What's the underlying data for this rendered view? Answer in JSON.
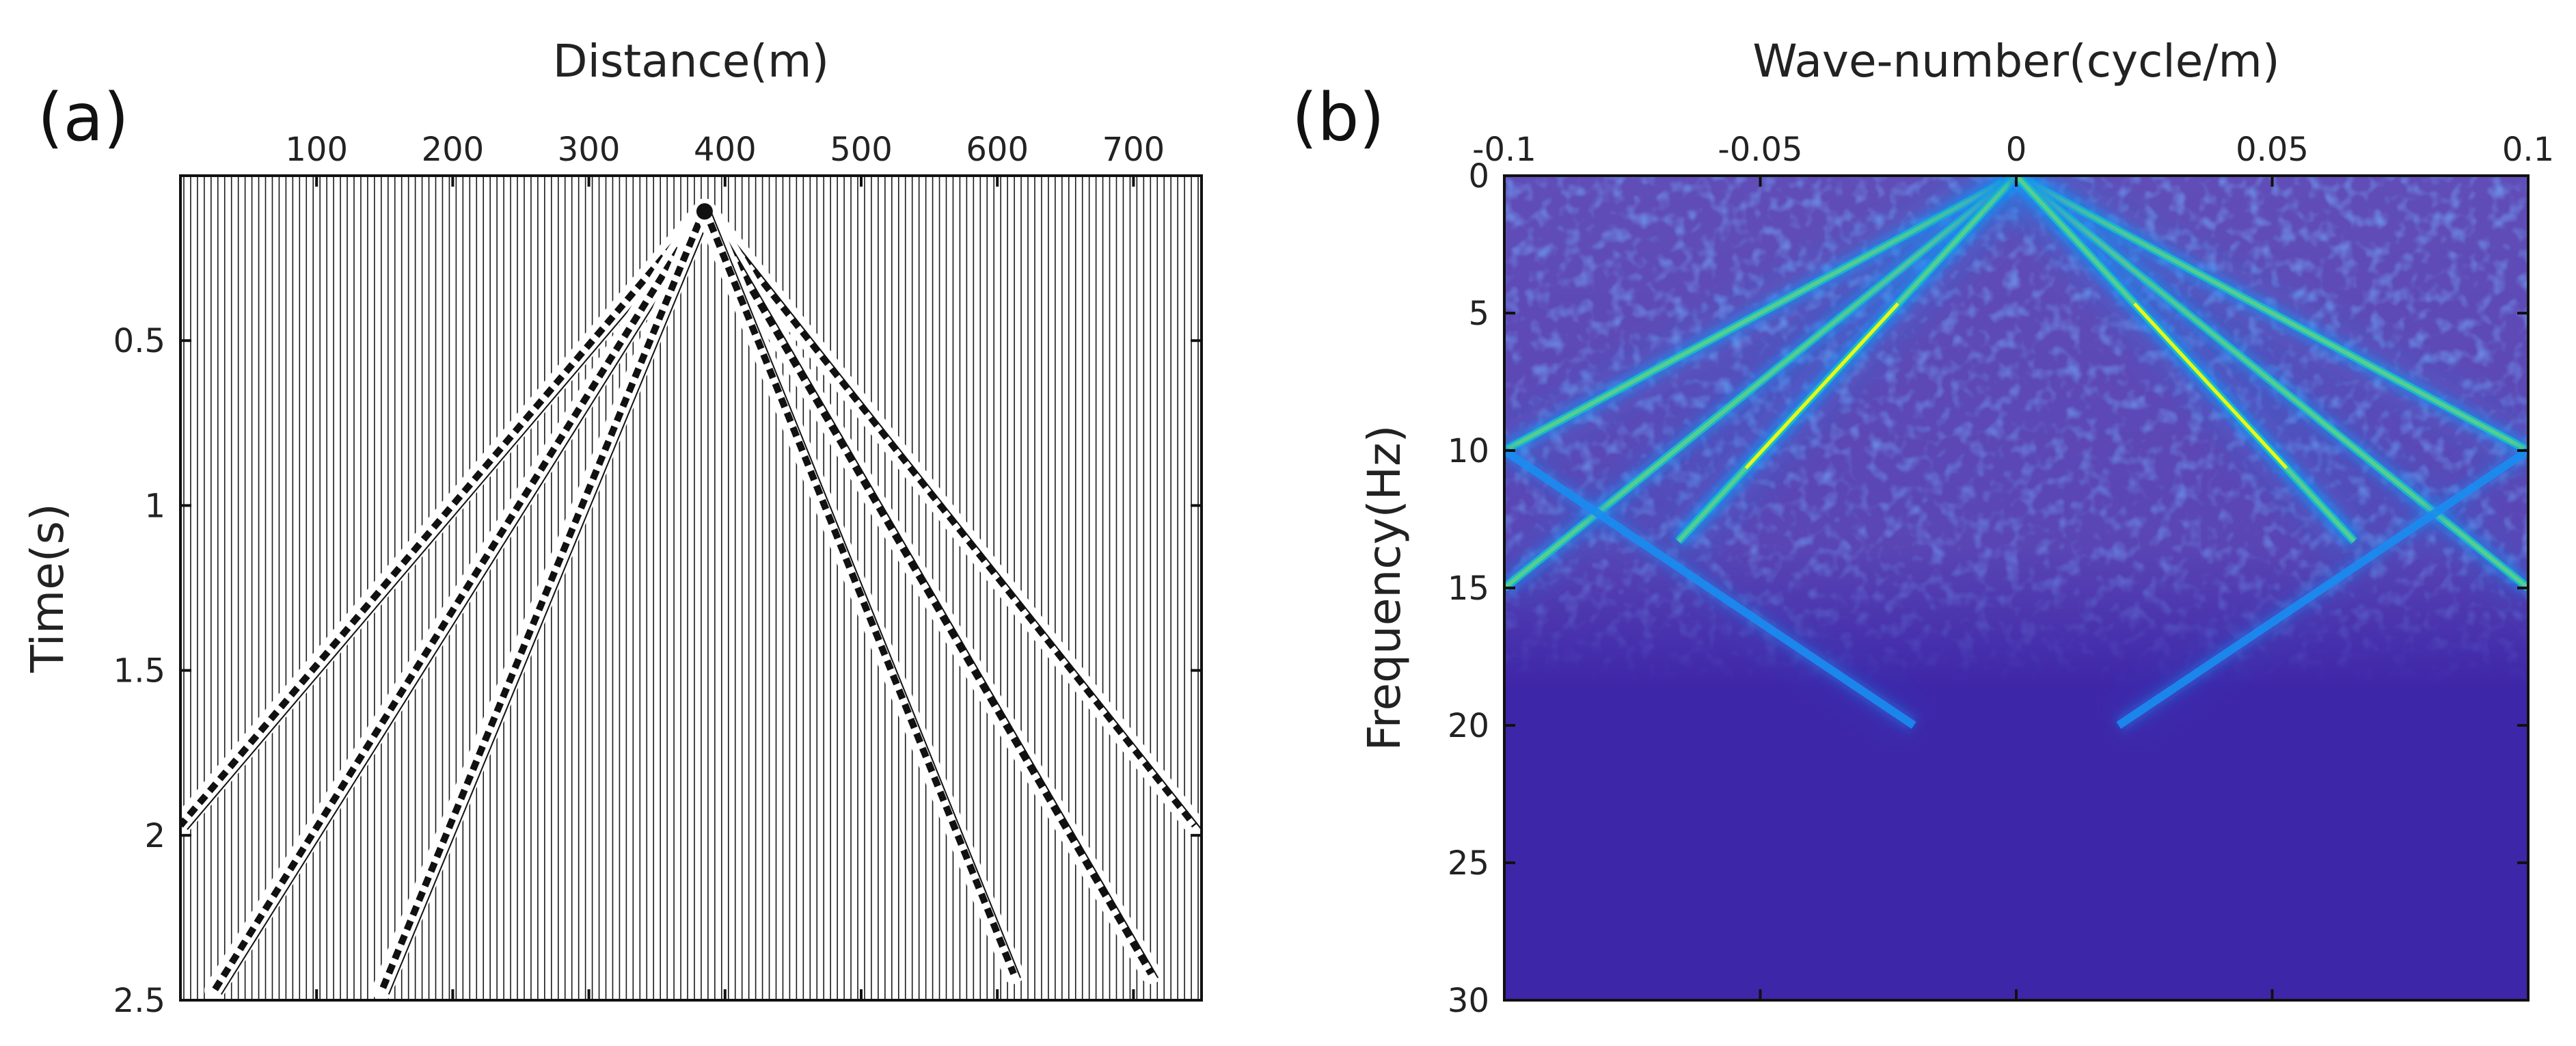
{
  "chart_data": [
    {
      "panel_label": "(a)",
      "type": "seismic-wiggle",
      "xlabel": "Distance(m)",
      "ylabel": "Time(s)",
      "xlim": [
        0,
        750
      ],
      "ylim": [
        0,
        2.5
      ],
      "y_inverted": true,
      "x_axis_position": "top",
      "xticks": [
        100,
        200,
        300,
        400,
        500,
        600,
        700
      ],
      "xtick_labels": [
        "100",
        "200",
        "300",
        "400",
        "500",
        "600",
        "700"
      ],
      "yticks": [
        0.5,
        1,
        1.5,
        2,
        2.5
      ],
      "ytick_labels": [
        "0.5",
        "1",
        "1.5",
        "2",
        "2.5"
      ],
      "trace_spacing_m": 5,
      "source_position_m": 385,
      "apex_time_s": 0.1,
      "events": [
        {
          "name": "left-event-1",
          "points": [
            [
              385,
              0.1
            ],
            [
              0,
              1.97
            ]
          ]
        },
        {
          "name": "left-event-2",
          "points": [
            [
              385,
              0.1
            ],
            [
              25,
              2.47
            ]
          ]
        },
        {
          "name": "left-event-3",
          "points": [
            [
              385,
              0.1
            ],
            [
              148,
              2.47
            ]
          ]
        },
        {
          "name": "right-event-1",
          "points": [
            [
              385,
              0.1
            ],
            [
              745,
              1.97
            ]
          ]
        },
        {
          "name": "right-event-2",
          "points": [
            [
              385,
              0.1
            ],
            [
              713,
              2.42
            ]
          ]
        },
        {
          "name": "right-event-3",
          "points": [
            [
              385,
              0.1
            ],
            [
              612,
              2.42
            ]
          ]
        }
      ]
    },
    {
      "panel_label": "(b)",
      "type": "heatmap",
      "xlabel": "Wave-number(cycle/m)",
      "ylabel": "Frequency(Hz)",
      "xlim": [
        -0.1,
        0.1
      ],
      "ylim": [
        0,
        30
      ],
      "y_inverted": true,
      "x_axis_position": "top",
      "xticks": [
        -0.1,
        -0.05,
        0,
        0.05,
        0.1
      ],
      "xtick_labels": [
        "-0.1",
        "-0.05",
        "0",
        "0.05",
        "0.1"
      ],
      "yticks": [
        0,
        5,
        10,
        15,
        20,
        25,
        30
      ],
      "ytick_labels": [
        "0",
        "5",
        "10",
        "15",
        "20",
        "25",
        "30"
      ],
      "colormap": [
        "#3e26a8",
        "#2f4ce0",
        "#1a8cf0",
        "#16c0c8",
        "#5dd08a",
        "#c8c83a",
        "#f9fb0e"
      ],
      "energy_lines": [
        {
          "name": "neg-outer",
          "from": [
            0,
            0
          ],
          "to": [
            -0.1,
            10
          ],
          "intensity": 0.7
        },
        {
          "name": "neg-middle",
          "from": [
            0,
            0
          ],
          "to": [
            -0.1,
            15
          ],
          "intensity": 0.6
        },
        {
          "name": "neg-inner",
          "from": [
            0,
            0
          ],
          "to": [
            -0.066,
            13.3
          ],
          "intensity": 0.95
        },
        {
          "name": "pos-outer",
          "from": [
            0,
            0
          ],
          "to": [
            0.1,
            10
          ],
          "intensity": 0.7
        },
        {
          "name": "pos-middle",
          "from": [
            0,
            0
          ],
          "to": [
            0.1,
            15
          ],
          "intensity": 0.6
        },
        {
          "name": "pos-inner",
          "from": [
            0,
            0
          ],
          "to": [
            0.066,
            13.3
          ],
          "intensity": 0.95
        },
        {
          "name": "neg-alias",
          "from": [
            -0.1,
            10
          ],
          "to": [
            -0.02,
            20
          ],
          "intensity": 0.25
        },
        {
          "name": "pos-alias",
          "from": [
            0.1,
            10
          ],
          "to": [
            0.02,
            20
          ],
          "intensity": 0.25
        }
      ]
    }
  ]
}
